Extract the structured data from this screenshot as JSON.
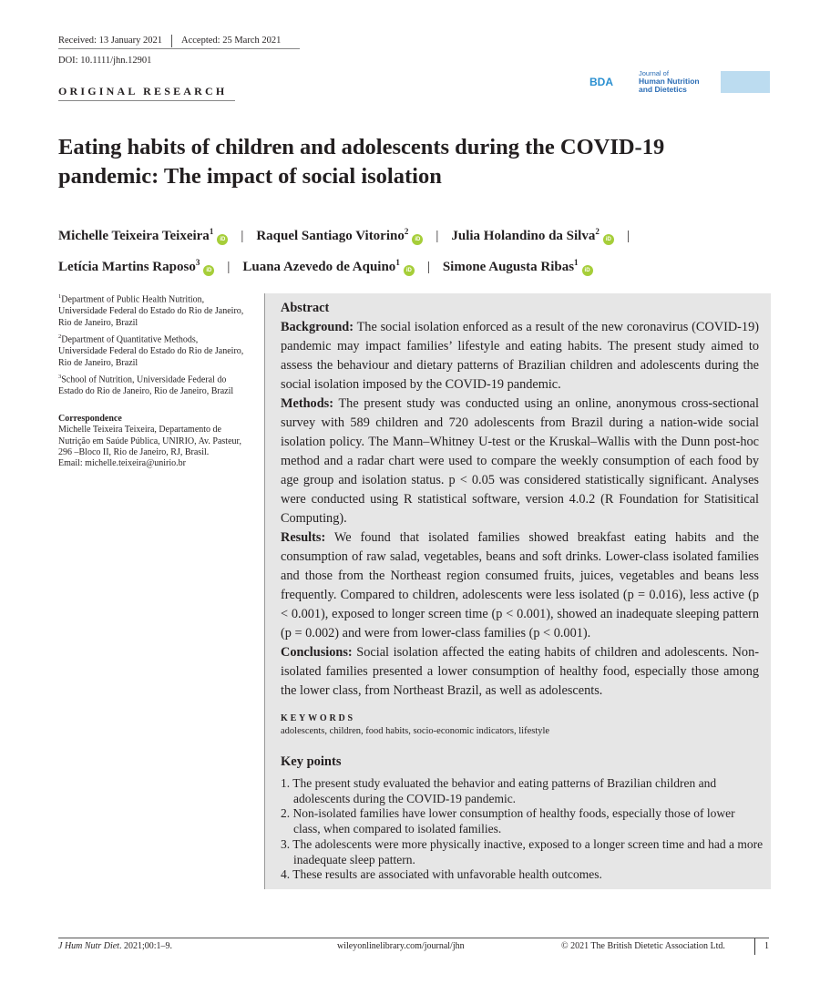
{
  "header": {
    "received": "Received: 13 January 2021",
    "accepted": "Accepted: 25 March 2021",
    "doi": "DOI: 10.1111/jhn.12901",
    "section": "ORIGINAL RESEARCH"
  },
  "logo": {
    "bda": "BDA",
    "journal_line1": "Journal of",
    "journal_line2": "Human Nutrition",
    "journal_line3": "and Dietetics"
  },
  "title": "Eating habits of children and adolescents during the COVID-19 pandemic: The impact of social isolation",
  "authors": [
    {
      "name": "Michelle Teixeira Teixeira",
      "aff": "1"
    },
    {
      "name": "Raquel Santiago Vitorino",
      "aff": "2"
    },
    {
      "name": "Julia Holandino da Silva",
      "aff": "2"
    },
    {
      "name": "Letícia Martins Raposo",
      "aff": "3"
    },
    {
      "name": "Luana Azevedo de Aquino",
      "aff": "1"
    },
    {
      "name": "Simone Augusta Ribas",
      "aff": "1"
    }
  ],
  "affiliations": [
    {
      "num": "1",
      "text": "Department of Public Health Nutrition, Universidade Federal do Estado do Rio de Janeiro, Rio de Janeiro, Brazil"
    },
    {
      "num": "2",
      "text": "Department of Quantitative Methods, Universidade Federal do Estado do Rio de Janeiro, Rio de Janeiro, Brazil"
    },
    {
      "num": "3",
      "text": "School of Nutrition, Universidade Federal do Estado do Rio de Janeiro, Rio de Janeiro, Brazil"
    }
  ],
  "correspondence": {
    "heading": "Correspondence",
    "text": "Michelle Teixeira Teixeira, Departamento de Nutrição em Saúde Pública, UNIRIO, Av. Pasteur, 296 –Bloco II, Rio de Janeiro, RJ, Brasil.",
    "email": "Email: michelle.teixeira@unirio.br"
  },
  "abstract": {
    "heading": "Abstract",
    "background_label": "Background:",
    "background": "The social isolation enforced as a result of the new coronavirus (COVID-19) pandemic may impact families’ lifestyle and eating habits. The present study aimed to assess the behaviour and dietary patterns of Brazilian children and adolescents during the social isolation imposed by the COVID-19 pandemic.",
    "methods_label": "Methods:",
    "methods": "The present study was conducted using an online, anonymous cross-sectional survey with 589 children and 720 adolescents from Brazil during a nation-wide social isolation policy. The Mann–Whitney U-test or the Kruskal–Wallis with the Dunn post-hoc method and a radar chart were used to compare the weekly consumption of each food by age group and isolation status. p < 0.05 was considered statistically significant. Analyses were conducted using R statistical software, version 4.0.2 (R Foundation for Statisitical Computing).",
    "results_label": "Results:",
    "results": "We found that isolated families showed breakfast eating habits and the consumption of raw salad, vegetables, beans and soft drinks. Lower-class isolated families and those from the Northeast region consumed fruits, juices, vegetables and beans less frequently. Compared to children, adolescents were less isolated (p = 0.016), less active (p < 0.001), exposed to longer screen time (p < 0.001), showed an inadequate sleeping pattern (p = 0.002) and were from lower-class families (p < 0.001).",
    "conclusions_label": "Conclusions:",
    "conclusions": "Social isolation affected the eating habits of children and adolescents. Non-isolated families presented a lower consumption of healthy food, especially those among the lower class, from Northeast Brazil, as well as adolescents."
  },
  "keywords": {
    "heading": "KEYWORDS",
    "text": "adolescents, children, food habits, socio-economic indicators, lifestyle"
  },
  "key_points": {
    "heading": "Key points",
    "items": [
      "1. The present study evaluated the behavior and eating patterns of Brazilian children and adolescents during the COVID-19 pandemic.",
      "2. Non-isolated families have lower consumption of healthy foods, especially those of lower class, when compared to isolated families.",
      "3. The adolescents were more physically inactive, exposed to a longer screen time and had a more inadequate sleep pattern.",
      "4. These results are associated with unfavorable health outcomes."
    ]
  },
  "footer": {
    "citation_journal": "J Hum Nutr Diet",
    "citation_rest": ". 2021;00:1–9.",
    "url": "wileyonlinelibrary.com/journal/jhn",
    "copyright": "© 2021 The British Dietetic Association Ltd.",
    "page": "1"
  }
}
